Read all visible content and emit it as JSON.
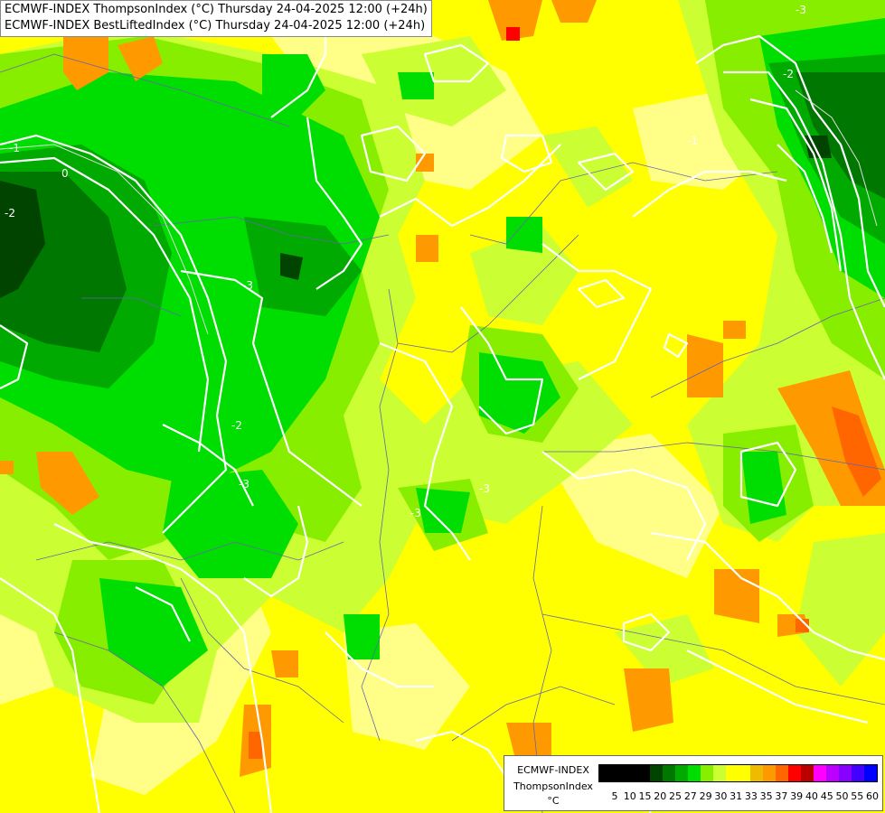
{
  "title_lines": [
    "ECMWF-INDEX ThompsonIndex (°C) Thursday 24-04-2025 12:00 (+24h)",
    "ECMWF-INDEX BestLiftedIndex (°C) Thursday 24-04-2025 12:00 (+24h)"
  ],
  "legend": {
    "model": "ECMWF-INDEX",
    "parameter": "ThompsonIndex",
    "unit": "°C",
    "colors": [
      "#000000",
      "#000000",
      "#000000",
      "#000000",
      "#004400",
      "#007700",
      "#00aa00",
      "#00dd00",
      "#88ee00",
      "#ccff33",
      "#ffff00",
      "#ffff00",
      "#eebb00",
      "#ff9900",
      "#ff6600",
      "#ff0000",
      "#bb0000",
      "#ff00ff",
      "#bb00ff",
      "#8800ff",
      "#4400ff",
      "#0000ff"
    ],
    "ticks": [
      "5",
      "10",
      "15",
      "20",
      "25",
      "27",
      "29",
      "30",
      "31",
      "33",
      "35",
      "37",
      "39",
      "40",
      "45",
      "50",
      "55",
      "60"
    ]
  },
  "contour_labels": [
    "-1",
    "0",
    "-2",
    "-3",
    "-2",
    "-3",
    "-1",
    "-3",
    "-3",
    "-2",
    "-3"
  ]
}
